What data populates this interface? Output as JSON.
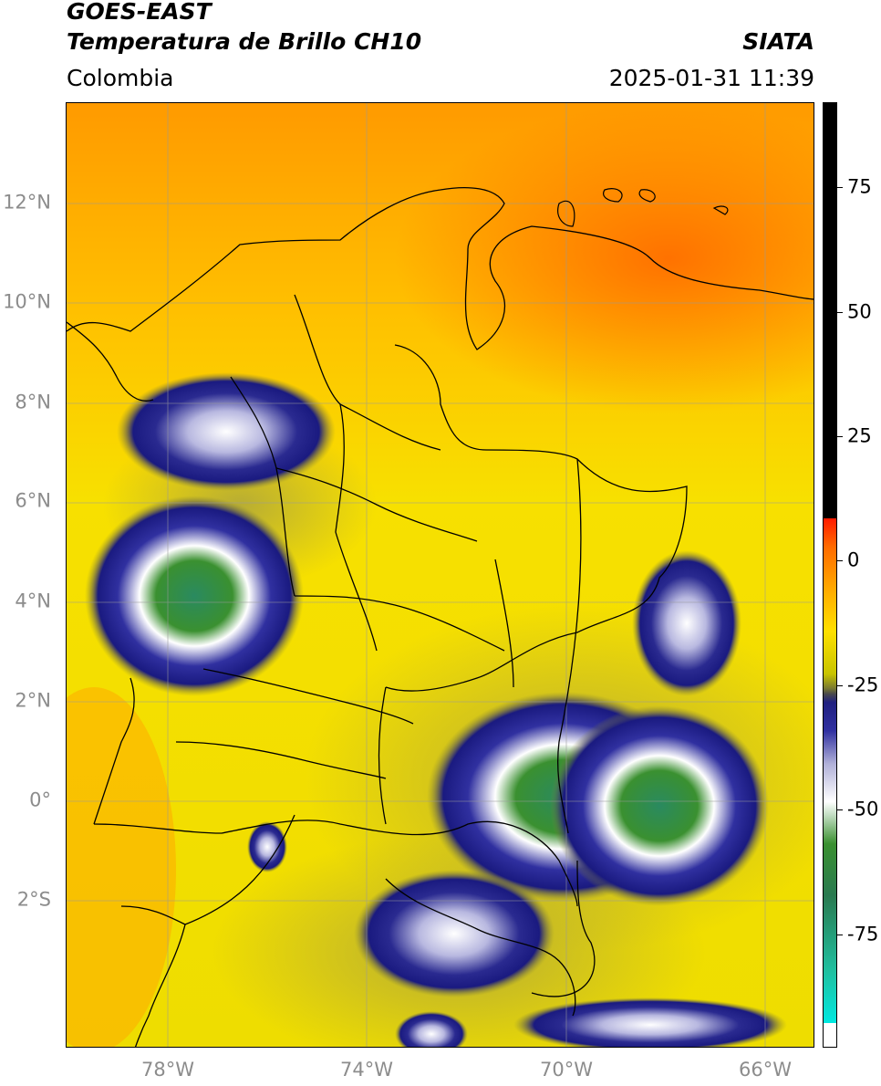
{
  "header": {
    "satellite": "GOES-EAST",
    "product": "Temperatura de Brillo CH10",
    "region": "Colombia",
    "agency": "SIATA",
    "datetime": "2025-01-31 11:39"
  },
  "map": {
    "lat_labels": [
      "12°N",
      "10°N",
      "8°N",
      "6°N",
      "4°N",
      "2°N",
      "0°",
      "2°S"
    ],
    "lon_labels": [
      "78°W",
      "74°W",
      "70°W",
      "66°W"
    ],
    "gridlines": true
  },
  "colorbar": {
    "tick_labels": [
      "75",
      "50",
      "25",
      "0",
      "-25",
      "-50",
      "-75"
    ],
    "colors": {
      "warm_top": "#000000",
      "red": "#ff1a00",
      "orange": "#ff8a00",
      "yellow": "#f4e600",
      "olive": "#a8a040",
      "navy": "#1a1a80",
      "white": "#ffffff",
      "green": "#3a9030",
      "teal": "#20c0a0",
      "cyan": "#00e8e0"
    }
  }
}
